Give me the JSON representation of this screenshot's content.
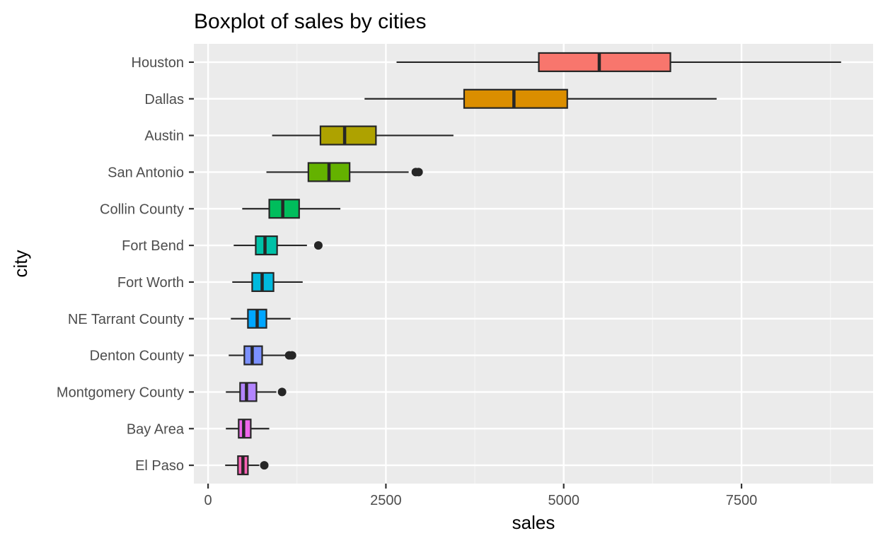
{
  "chart_data": {
    "type": "boxplot",
    "title": "Boxplot of sales by cities",
    "xlabel": "sales",
    "ylabel": "city",
    "xlim": [
      -200,
      9350
    ],
    "xticks": [
      0,
      2500,
      5000,
      7500
    ],
    "xtick_labels": [
      "0",
      "2500",
      "5000",
      "7500"
    ],
    "grid": true,
    "legend": "none",
    "categories": [
      "Houston",
      "Dallas",
      "Austin",
      "San Antonio",
      "Collin County",
      "Fort Bend",
      "Fort Worth",
      "NE Tarrant County",
      "Denton County",
      "Montgomery County",
      "Bay Area",
      "El Paso"
    ],
    "series": [
      {
        "city": "Houston",
        "whisker_low": 2650,
        "q1": 4650,
        "median": 5500,
        "q3": 6500,
        "whisker_high": 8900,
        "outliers": [],
        "color": "#F8766D"
      },
      {
        "city": "Dallas",
        "whisker_low": 2200,
        "q1": 3600,
        "median": 4300,
        "q3": 5050,
        "whisker_high": 7150,
        "outliers": [],
        "color": "#DB8E00"
      },
      {
        "city": "Austin",
        "whisker_low": 900,
        "q1": 1580,
        "median": 1920,
        "q3": 2360,
        "whisker_high": 3450,
        "outliers": [],
        "color": "#AEA200"
      },
      {
        "city": "San Antonio",
        "whisker_low": 820,
        "q1": 1410,
        "median": 1700,
        "q3": 1990,
        "whisker_high": 2820,
        "outliers": [
          2920,
          2960
        ],
        "color": "#64B200"
      },
      {
        "city": "Collin County",
        "whisker_low": 480,
        "q1": 860,
        "median": 1050,
        "q3": 1280,
        "whisker_high": 1860,
        "outliers": [],
        "color": "#00BD5C"
      },
      {
        "city": "Fort Bend",
        "whisker_low": 360,
        "q1": 670,
        "median": 800,
        "q3": 970,
        "whisker_high": 1390,
        "outliers": [
          1550
        ],
        "color": "#00C1A7"
      },
      {
        "city": "Fort Worth",
        "whisker_low": 340,
        "q1": 620,
        "median": 760,
        "q3": 920,
        "whisker_high": 1330,
        "outliers": [],
        "color": "#00BADE"
      },
      {
        "city": "NE Tarrant County",
        "whisker_low": 320,
        "q1": 560,
        "median": 690,
        "q3": 820,
        "whisker_high": 1160,
        "outliers": [],
        "color": "#00A6FF"
      },
      {
        "city": "Denton County",
        "whisker_low": 290,
        "q1": 510,
        "median": 620,
        "q3": 760,
        "whisker_high": 1090,
        "outliers": [
          1140,
          1180
        ],
        "color": "#7C91FF"
      },
      {
        "city": "Montgomery County",
        "whisker_low": 250,
        "q1": 450,
        "median": 540,
        "q3": 680,
        "whisker_high": 960,
        "outliers": [
          1040
        ],
        "color": "#B385FF"
      },
      {
        "city": "Bay Area",
        "whisker_low": 250,
        "q1": 430,
        "median": 500,
        "q3": 600,
        "whisker_high": 860,
        "outliers": [],
        "color": "#EF67EB"
      },
      {
        "city": "El Paso",
        "whisker_low": 240,
        "q1": 420,
        "median": 490,
        "q3": 560,
        "whisker_high": 720,
        "outliers": [
          790
        ],
        "color": "#FF63B6"
      }
    ],
    "colors": {
      "panel_background": "#EBEBEB",
      "grid_major": "#FFFFFF",
      "grid_minor": "#F5F5F5",
      "box_outline": "#262626"
    }
  }
}
